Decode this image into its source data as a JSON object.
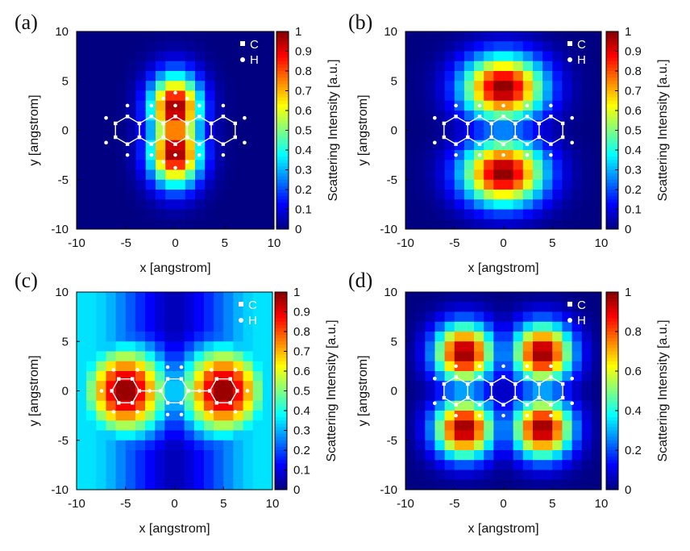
{
  "chart_data": [
    {
      "type": "heatmap",
      "panel_label": "(a)",
      "xlabel": "x [angstrom]",
      "ylabel": "y [angstrom]",
      "xlim": [
        -10,
        10
      ],
      "ylim": [
        -10,
        10
      ],
      "x_ticks": [
        "-10",
        "-5",
        "0",
        "5",
        "10"
      ],
      "y_ticks": [
        "10",
        "5",
        "0",
        "-5",
        "-10"
      ],
      "colorbar": {
        "label": "Scattering Intensity [a.u.]",
        "range": [
          0,
          1
        ],
        "ticks": [
          "1",
          "0.9",
          "0.8",
          "0.7",
          "0.6",
          "0.5",
          "0.4",
          "0.3",
          "0.2",
          "0.1",
          "0"
        ]
      },
      "legend": [
        "C",
        "H"
      ],
      "peaks": [
        {
          "x": 0,
          "y": 2.2,
          "sx": 1.8,
          "sy": 2.4,
          "amp": 1.0
        },
        {
          "x": 0,
          "y": -2.2,
          "sx": 1.8,
          "sy": 2.4,
          "amp": 1.0
        }
      ],
      "molecule": "pentacene-side-ring"
    },
    {
      "type": "heatmap",
      "panel_label": "(b)",
      "xlabel": "x [angstrom]",
      "ylabel": "y [angstrom]",
      "xlim": [
        -10,
        10
      ],
      "ylim": [
        -10,
        10
      ],
      "x_ticks": [
        "-10",
        "-5",
        "0",
        "5",
        "10"
      ],
      "y_ticks": [
        "10",
        "5",
        "0",
        "-5",
        "-10"
      ],
      "colorbar": {
        "label": "Scattering Intensity [a.u.]",
        "range": [
          0,
          1
        ],
        "ticks": [
          "1",
          "0.9",
          "0.8",
          "0.7",
          "0.6",
          "0.5",
          "0.4",
          "0.3",
          "0.2",
          "0.1",
          "0"
        ]
      },
      "legend": [
        "C",
        "H"
      ],
      "peaks": [
        {
          "x": 0,
          "y": 4.3,
          "sx": 2.9,
          "sy": 2.3,
          "amp": 1.0
        },
        {
          "x": 0,
          "y": -4.3,
          "sx": 2.9,
          "sy": 2.3,
          "amp": 1.0
        }
      ],
      "molecule": "pentacene"
    },
    {
      "type": "heatmap",
      "panel_label": "(c)",
      "xlabel": "x [angstrom]",
      "ylabel": "y [angstrom]",
      "xlim": [
        -10,
        10
      ],
      "ylim": [
        -10,
        10
      ],
      "x_ticks": [
        "-10",
        "-5",
        "0",
        "5",
        "10"
      ],
      "y_ticks": [
        "10",
        "5",
        "0",
        "-5",
        "-10"
      ],
      "colorbar": {
        "label": "Scattering Intensity [a.u.]",
        "range": [
          0,
          1
        ],
        "ticks": [
          "1",
          "0.9",
          "0.8",
          "0.7",
          "0.6",
          "0.5",
          "0.4",
          "0.3",
          "0.2",
          "0.1",
          "0"
        ]
      },
      "legend": [
        "C",
        "H"
      ],
      "peaks": [
        {
          "x": -5,
          "y": 0,
          "sx": 3.0,
          "sy": 3.2,
          "amp": 1.0
        },
        {
          "x": 5,
          "y": 0,
          "sx": 3.0,
          "sy": 3.2,
          "amp": 1.0
        }
      ],
      "molecule": "biphenyl"
    },
    {
      "type": "heatmap",
      "panel_label": "(d)",
      "xlabel": "x [angstrom]",
      "ylabel": "y [angstrom]",
      "xlim": [
        -10,
        10
      ],
      "ylim": [
        -10,
        10
      ],
      "x_ticks": [
        "-10",
        "-5",
        "0",
        "5",
        "10"
      ],
      "y_ticks": [
        "10",
        "5",
        "0",
        "-5",
        "-10"
      ],
      "colorbar": {
        "label": "Scattering Intensity [a.u.]",
        "range": [
          0,
          1
        ],
        "ticks": [
          "1",
          "0.8",
          "0.6",
          "0.4",
          "0.2",
          "0"
        ]
      },
      "legend": [
        "C",
        "H"
      ],
      "peaks": [
        {
          "x": -4,
          "y": 3.8,
          "sx": 2.1,
          "sy": 2.1,
          "amp": 1.0
        },
        {
          "x": 4,
          "y": 3.8,
          "sx": 2.1,
          "sy": 2.1,
          "amp": 1.0
        },
        {
          "x": -4,
          "y": -3.8,
          "sx": 2.1,
          "sy": 2.1,
          "amp": 1.0
        },
        {
          "x": 4,
          "y": -3.8,
          "sx": 2.1,
          "sy": 2.1,
          "amp": 1.0
        }
      ],
      "molecule": "pentacene"
    }
  ]
}
